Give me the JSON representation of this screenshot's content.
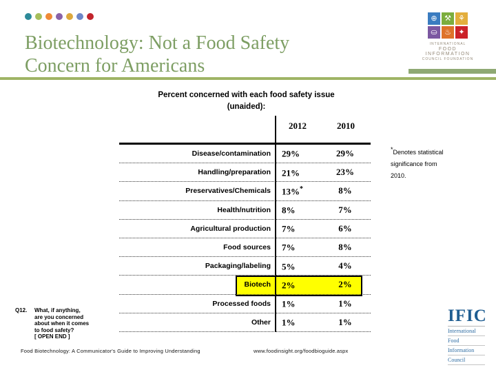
{
  "slide": {
    "title": "Biotechnology: Not a Food Safety\nConcern for Americans",
    "title_color": "#7D9E63",
    "rule_color": "#9FB465",
    "dots": [
      "#2D8A99",
      "#A6BE5B",
      "#F08A36",
      "#8A62A8",
      "#DDA83D",
      "#6E87C8",
      "#C2242C"
    ]
  },
  "header_logo": {
    "tiles": [
      {
        "icon": "globe-icon",
        "glyph": "⊕",
        "color": "#3A7CC0"
      },
      {
        "icon": "science-icon",
        "glyph": "⚒",
        "color": "#7CAD3E"
      },
      {
        "icon": "farm-icon",
        "glyph": "⚘",
        "color": "#E3AE3C"
      },
      {
        "icon": "cart-icon",
        "glyph": "⛀",
        "color": "#7B57A1"
      },
      {
        "icon": "cooking-icon",
        "glyph": "♨",
        "color": "#DE7229"
      },
      {
        "icon": "utensils-icon",
        "glyph": "✦",
        "color": "#CC2229"
      }
    ],
    "caption_line1": "INTERNATIONAL",
    "caption_line2": "FOOD INFORMATION",
    "caption_line3": "COUNCIL FOUNDATION",
    "bar_color": "#8FA973"
  },
  "chart_data": {
    "type": "table",
    "title": "Percent concerned with each food safety issue\n(unaided):",
    "columns": [
      "2012",
      "2010"
    ],
    "rows": [
      {
        "label": "Disease/contamination",
        "y2012": "29%",
        "y2010": "29%"
      },
      {
        "label": "Handling/preparation",
        "y2012": "21%",
        "y2010": "23%"
      },
      {
        "label": "Preservatives/Chemicals",
        "y2012": "13%",
        "star": "*",
        "y2010": "8%"
      },
      {
        "label": "Health/nutrition",
        "y2012": "8%",
        "y2010": "7%"
      },
      {
        "label": "Agricultural production",
        "y2012": "7%",
        "y2010": "6%"
      },
      {
        "label": "Food sources",
        "y2012": "7%",
        "y2010": "8%"
      },
      {
        "label": "Packaging/labeling",
        "y2012": "5%",
        "y2010": "4%"
      },
      {
        "label": "Biotech",
        "y2012": "2%",
        "y2010": "2%",
        "highlight": true
      },
      {
        "label": "Processed foods",
        "y2012": "1%",
        "y2010": "1%"
      },
      {
        "label": "Other",
        "y2012": "1%",
        "y2010": "1%"
      }
    ],
    "highlight_color": "#FFFF00",
    "highlight_row": "Biotech"
  },
  "note": {
    "star": "*",
    "text": "Denotes statistical\nsignificance from\n2010."
  },
  "question": {
    "number": "Q12.",
    "text": "What, if anything,\nare you concerned\nabout when it comes\nto food safety?\n[ OPEN END ]"
  },
  "footer": {
    "left": "Food Biotechnology: A Communicator's Guide to Improving Understanding",
    "right": "www.foodinsight.org/foodbioguide.aspx"
  },
  "footer_logo": {
    "wordmark": "IFIC",
    "lines": [
      "International",
      "Food",
      "Information",
      "Council"
    ],
    "color": "#205E92"
  }
}
